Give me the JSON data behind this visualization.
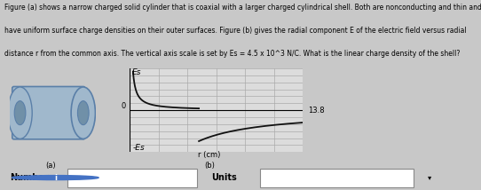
{
  "title_lines": [
    "Figure (a) shows a narrow charged solid cylinder that is coaxial with a larger charged cylindrical shell. Both are nonconducting and thin and",
    "have uniform surface charge densities on their outer surfaces. Figure (b) gives the radial component E of the electric field versus radial",
    "distance r from the common axis. The vertical axis scale is set by Es = 4.5 x 10^3 N/C. What is the linear charge density of the shell?"
  ],
  "Es": 4.5,
  "r_max": 13.8,
  "r_shell": 5.5,
  "grid_color": "#aaaaaa",
  "line_color": "#111111",
  "plot_bg": "#dcdcdc",
  "xlabel": "r (cm)",
  "ylabel_top": "Es",
  "ylabel_bottom": "-Es",
  "x_tick_label": "13.8",
  "zero_label": "0",
  "number_label": "Number",
  "units_label": "Units",
  "fig_label_a": "(a)",
  "fig_label_b": "(b)",
  "bg_color": "#c8c8c8",
  "cyl_face_color": "#a0b8cc",
  "cyl_edge_color": "#5a7fa8",
  "cyl_inner_color": "#7090a8",
  "info_color": "#4472c4"
}
